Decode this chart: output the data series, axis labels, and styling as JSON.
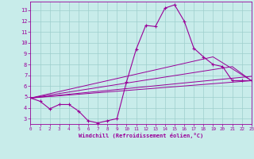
{
  "xlabel": "Windchill (Refroidissement éolien,°C)",
  "bg_color": "#c8ecea",
  "line_color": "#990099",
  "grid_color": "#9ecfcc",
  "xlim": [
    0,
    23
  ],
  "ylim": [
    2.5,
    13.8
  ],
  "xticks": [
    0,
    1,
    2,
    3,
    4,
    5,
    6,
    7,
    8,
    9,
    10,
    11,
    12,
    13,
    14,
    15,
    16,
    17,
    18,
    19,
    20,
    21,
    22,
    23
  ],
  "yticks": [
    3,
    4,
    5,
    6,
    7,
    8,
    9,
    10,
    11,
    12,
    13
  ],
  "main_x": [
    0,
    1,
    2,
    3,
    4,
    5,
    6,
    7,
    8,
    9,
    10,
    11,
    12,
    13,
    14,
    15,
    16,
    17,
    18,
    19,
    20,
    21,
    22,
    23
  ],
  "main_y": [
    4.9,
    4.6,
    3.9,
    4.3,
    4.3,
    3.7,
    2.8,
    2.6,
    2.8,
    3.0,
    6.4,
    9.4,
    11.6,
    11.5,
    13.2,
    13.5,
    12.0,
    9.5,
    8.7,
    8.0,
    7.8,
    6.5,
    6.5,
    6.5
  ],
  "trend_lines": [
    {
      "x": [
        0,
        23
      ],
      "y": [
        4.9,
        6.5
      ]
    },
    {
      "x": [
        0,
        23
      ],
      "y": [
        4.9,
        6.9
      ]
    },
    {
      "x": [
        0,
        21,
        23
      ],
      "y": [
        4.9,
        7.8,
        6.5
      ]
    },
    {
      "x": [
        0,
        19,
        23
      ],
      "y": [
        4.9,
        8.7,
        6.5
      ]
    }
  ]
}
